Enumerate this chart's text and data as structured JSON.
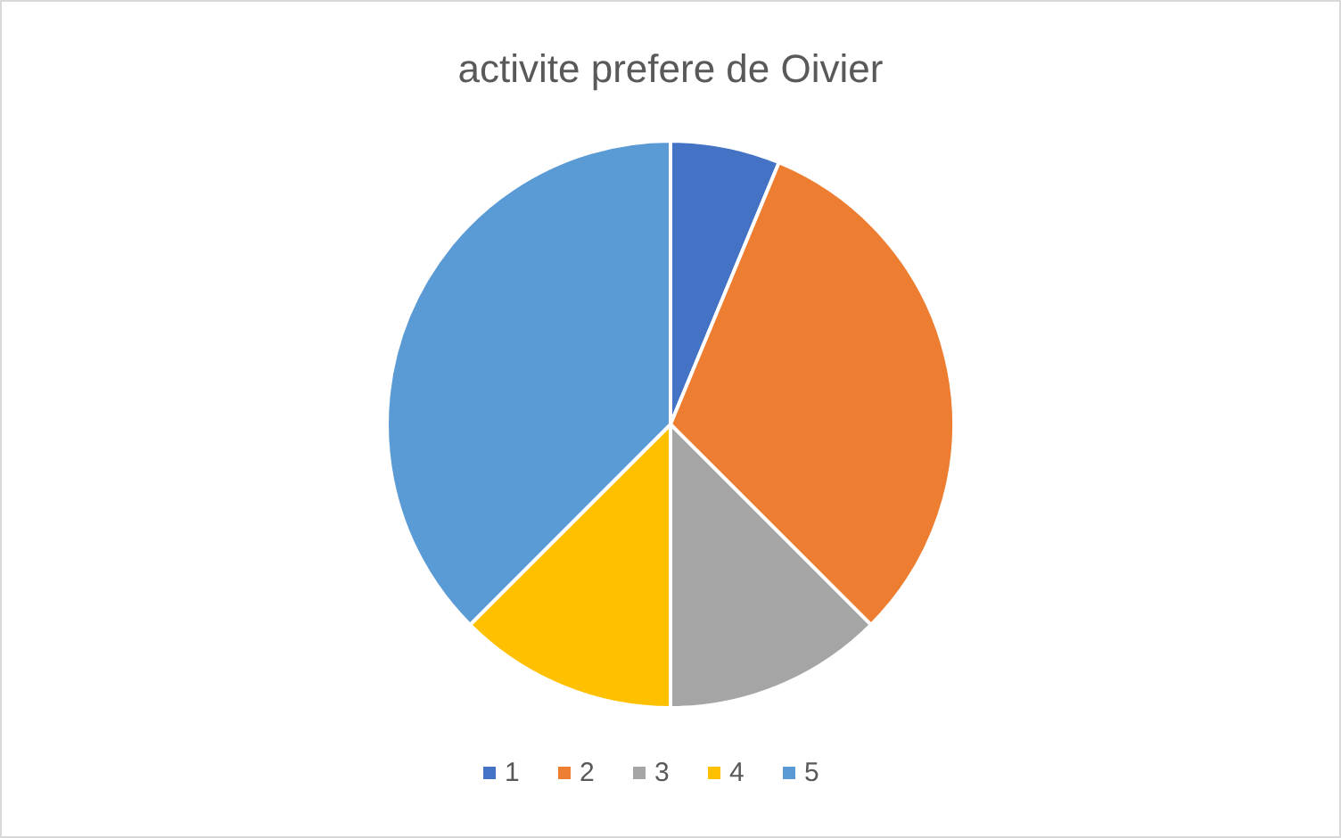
{
  "chart_data": {
    "type": "pie",
    "title": "activite prefere de Oivier",
    "categories": [
      "1",
      "2",
      "3",
      "4",
      "5"
    ],
    "values": [
      6.25,
      31.25,
      12.5,
      12.5,
      37.5
    ],
    "colors": [
      "#4472c4",
      "#ed7d31",
      "#a5a5a5",
      "#ffc000",
      "#5b9bd5"
    ],
    "legend": "bottom"
  }
}
